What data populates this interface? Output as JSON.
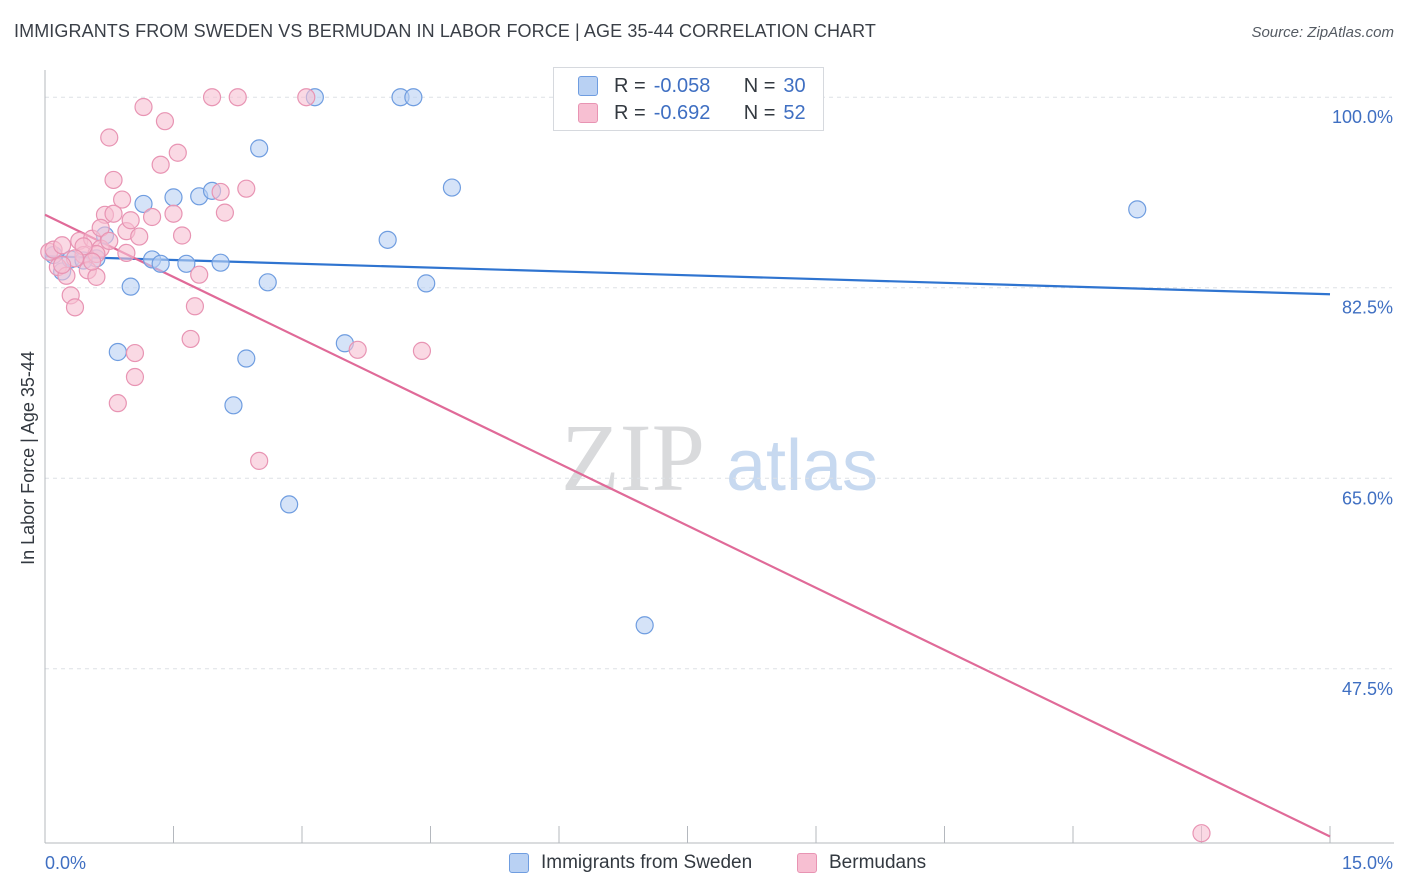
{
  "title": "IMMIGRANTS FROM SWEDEN VS BERMUDAN IN LABOR FORCE | AGE 35-44 CORRELATION CHART",
  "source": "Source: ZipAtlas.com",
  "watermark": {
    "zip": "ZIP",
    "atlas": "atlas"
  },
  "colors": {
    "blue": "#3a78d4",
    "blue_fill": "#b9d1f3",
    "blue_line": "#2f74d0",
    "pink": "#e0709a",
    "pink_fill": "#f7bfd2",
    "pink_line": "#e06a98",
    "axis_text": "#3f6fc2",
    "grid": "#dde1e6"
  },
  "legend": {
    "rows": [
      {
        "r_label": "R =",
        "r_value": "-0.058",
        "n_label": "N =",
        "n_value": "30"
      },
      {
        "r_label": "R =",
        "r_value": "-0.692",
        "n_label": "N =",
        "n_value": "52"
      }
    ]
  },
  "bottom_legend": [
    "Immigrants from Sweden",
    "Bermudans"
  ],
  "chart_data": {
    "type": "scatter",
    "xlabel": "",
    "ylabel": "In Labor Force | Age 35-44",
    "xlim": [
      0,
      15
    ],
    "ylim": [
      31.5,
      102.5
    ],
    "x_tick_labels": [
      "0.0%",
      "15.0%"
    ],
    "y_ticks": [
      100,
      82.5,
      65,
      47.5
    ],
    "y_tick_labels": [
      "100.0%",
      "82.5%",
      "65.0%",
      "47.5%"
    ],
    "series": [
      {
        "name": "Immigrants from Sweden",
        "color": "blue",
        "r": -0.058,
        "n": 30,
        "trend": {
          "x": [
            0,
            15
          ],
          "y": [
            85.4,
            81.9
          ]
        },
        "points": [
          [
            0.1,
            85.5
          ],
          [
            0.2,
            84.0
          ],
          [
            0.3,
            85.1
          ],
          [
            0.6,
            85.2
          ],
          [
            0.7,
            87.3
          ],
          [
            0.85,
            76.6
          ],
          [
            1.0,
            82.6
          ],
          [
            1.15,
            90.2
          ],
          [
            1.25,
            85.1
          ],
          [
            1.35,
            84.7
          ],
          [
            1.5,
            90.8
          ],
          [
            1.65,
            84.7
          ],
          [
            1.8,
            90.9
          ],
          [
            1.95,
            91.4
          ],
          [
            2.05,
            84.8
          ],
          [
            2.2,
            71.7
          ],
          [
            2.35,
            76.0
          ],
          [
            2.5,
            95.3
          ],
          [
            2.6,
            83.0
          ],
          [
            2.85,
            62.6
          ],
          [
            3.15,
            100.0
          ],
          [
            3.5,
            77.4
          ],
          [
            4.0,
            86.9
          ],
          [
            4.15,
            100.0
          ],
          [
            4.3,
            100.0
          ],
          [
            4.45,
            82.9
          ],
          [
            4.75,
            91.7
          ],
          [
            7.0,
            51.5
          ],
          [
            12.75,
            89.7
          ],
          [
            0.45,
            85.0
          ]
        ]
      },
      {
        "name": "Bermudans",
        "color": "pink",
        "r": -0.692,
        "n": 52,
        "trend": {
          "x": [
            0,
            15
          ],
          "y": [
            89.2,
            32.1
          ]
        },
        "points": [
          [
            0.05,
            85.8
          ],
          [
            0.1,
            86.0
          ],
          [
            0.15,
            84.4
          ],
          [
            0.2,
            86.4
          ],
          [
            0.25,
            83.6
          ],
          [
            0.3,
            81.8
          ],
          [
            0.35,
            80.7
          ],
          [
            0.4,
            86.8
          ],
          [
            0.45,
            85.5
          ],
          [
            0.5,
            84.1
          ],
          [
            0.55,
            87.0
          ],
          [
            0.6,
            83.5
          ],
          [
            0.65,
            86.1
          ],
          [
            0.7,
            89.2
          ],
          [
            0.75,
            96.3
          ],
          [
            0.8,
            92.4
          ],
          [
            0.85,
            71.9
          ],
          [
            0.9,
            90.6
          ],
          [
            0.95,
            87.7
          ],
          [
            1.0,
            88.7
          ],
          [
            0.6,
            85.6
          ],
          [
            0.55,
            84.9
          ],
          [
            0.45,
            86.3
          ],
          [
            1.05,
            76.5
          ],
          [
            1.05,
            74.3
          ],
          [
            1.15,
            99.1
          ],
          [
            1.25,
            89.0
          ],
          [
            1.35,
            93.8
          ],
          [
            1.4,
            97.8
          ],
          [
            1.5,
            89.3
          ],
          [
            1.55,
            94.9
          ],
          [
            1.6,
            87.3
          ],
          [
            1.7,
            77.8
          ],
          [
            1.75,
            80.8
          ],
          [
            1.8,
            83.7
          ],
          [
            1.95,
            100.0
          ],
          [
            2.05,
            91.3
          ],
          [
            2.1,
            89.4
          ],
          [
            2.25,
            100.0
          ],
          [
            2.35,
            91.6
          ],
          [
            2.5,
            66.6
          ],
          [
            3.05,
            100.0
          ],
          [
            3.65,
            76.8
          ],
          [
            4.4,
            76.7
          ],
          [
            13.5,
            32.4
          ],
          [
            0.8,
            89.3
          ],
          [
            0.65,
            88.0
          ],
          [
            0.75,
            86.8
          ],
          [
            0.95,
            85.7
          ],
          [
            1.1,
            87.2
          ],
          [
            0.35,
            85.2
          ],
          [
            0.2,
            84.6
          ]
        ]
      }
    ]
  }
}
